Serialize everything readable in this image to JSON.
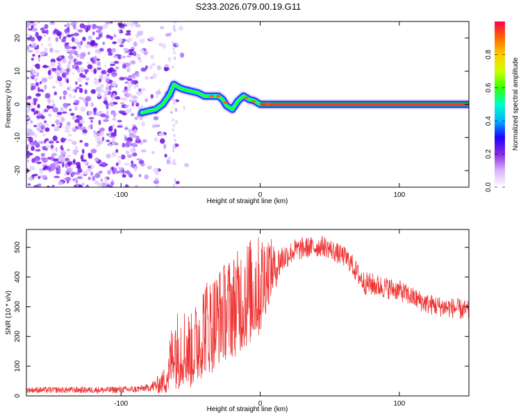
{
  "page": {
    "title": "S233.2026.079.00.19.G11"
  },
  "chart_data": [
    {
      "type": "heatmap",
      "xlabel": "Height of straight line (km)",
      "ylabel": "Frequency (Hz)",
      "xlim": [
        -168,
        150
      ],
      "ylim": [
        -25,
        25
      ],
      "x_ticks": [
        -100,
        0,
        100
      ],
      "y_ticks": [
        -20,
        -10,
        0,
        10,
        20
      ],
      "colorbar": {
        "label": "Normalized spectral amplitude",
        "range": [
          0,
          1
        ],
        "ticks": [
          "0.0",
          "0.2",
          "0.4",
          "0.6",
          "0.8"
        ],
        "colors": [
          "#ffffff",
          "#d9b3ff",
          "#8a2be2",
          "#1e00ff",
          "#00b4ff",
          "#00ffc8",
          "#33ff00",
          "#ccff00",
          "#ffcc00",
          "#ff6a00",
          "#ff004c"
        ]
      },
      "ridge": {
        "x": [
          -85,
          -80,
          -75,
          -70,
          -65,
          -62,
          -58,
          -55,
          -50,
          -45,
          -40,
          -35,
          -30,
          -27,
          -24,
          -20,
          -16,
          -12,
          -8,
          -4,
          0,
          4,
          10,
          20,
          40,
          60,
          80,
          100,
          120,
          150
        ],
        "y": [
          -2.5,
          -2,
          -1.5,
          0,
          3,
          6,
          5,
          4.5,
          4,
          3.5,
          2.5,
          2.5,
          2.5,
          1.5,
          -0.5,
          -1.5,
          1,
          2.5,
          1.5,
          1,
          0,
          0,
          0,
          0,
          0,
          0,
          0,
          0,
          0,
          0
        ]
      }
    },
    {
      "type": "line",
      "xlabel": "Height of straight line (km)",
      "ylabel": "SNR (10 * v/v)",
      "xlim": [
        -168,
        150
      ],
      "ylim": [
        0,
        560
      ],
      "x_ticks": [
        -100,
        0,
        100
      ],
      "y_ticks": [
        0,
        100,
        200,
        300,
        400,
        500
      ],
      "color": "#ee3333",
      "series": [
        {
          "x": [
            -168,
            -150,
            -130,
            -110,
            -90,
            -80,
            -75,
            -70,
            -65,
            -62,
            -60,
            -55,
            -50,
            -45,
            -40,
            -35,
            -30,
            -25,
            -20,
            -15,
            -10,
            -5,
            0,
            5,
            10,
            15,
            20,
            25,
            30,
            35,
            40,
            45,
            50,
            55,
            60,
            65,
            70,
            75,
            80,
            90,
            100,
            110,
            120,
            130,
            140,
            150
          ],
          "values": [
            20,
            20,
            20,
            20,
            22,
            28,
            35,
            45,
            80,
            150,
            120,
            140,
            120,
            150,
            200,
            200,
            230,
            250,
            260,
            280,
            300,
            320,
            330,
            390,
            420,
            460,
            475,
            490,
            495,
            500,
            500,
            505,
            495,
            480,
            470,
            450,
            410,
            380,
            375,
            365,
            355,
            330,
            310,
            300,
            295,
            285
          ]
        }
      ],
      "noise_envelope": {
        "x": [
          -168,
          -80,
          -70,
          -60,
          -50,
          -40,
          -30,
          -20,
          -10,
          0,
          10,
          20,
          40,
          60,
          80,
          100,
          120,
          150
        ],
        "amplitude": [
          10,
          12,
          40,
          120,
          110,
          140,
          140,
          150,
          160,
          150,
          70,
          40,
          35,
          35,
          40,
          35,
          35,
          35
        ]
      }
    }
  ]
}
